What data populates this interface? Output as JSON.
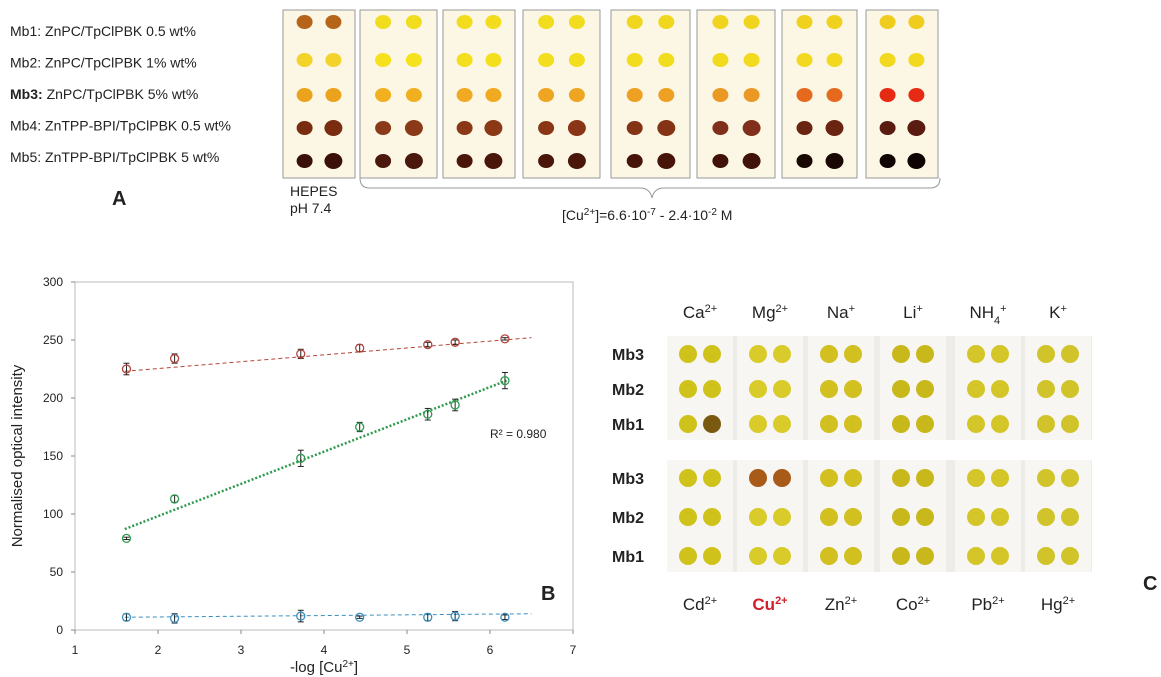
{
  "panel_a": {
    "label": "A",
    "legend": [
      {
        "id": "Mb1:",
        "text": "ZnPC/TpClPBK 0.5 wt%"
      },
      {
        "id": "Mb2:",
        "text": "ZnPC/TpClPBK  1% wt%"
      },
      {
        "id": "Mb3:",
        "text": "ZnPC/TpClPBK  5% wt%",
        "bold": true
      },
      {
        "id": "Mb4:",
        "text": "ZnTPP-BPI/TpClPBK 0.5 wt%"
      },
      {
        "id": "Mb5:",
        "text": "ZnTPP-BPI/TpClPBK 5 wt%"
      }
    ],
    "control": [
      "HEPES",
      "pH 7.4"
    ],
    "range": [
      "[Cu",
      "2+",
      "]=6.6·10",
      "-7",
      " - 2.4·10",
      "-2",
      " M"
    ]
  },
  "chart_data": {
    "type": "scatter",
    "label": "B",
    "xlabel": [
      "-log [Cu",
      "2+",
      "]"
    ],
    "ylabel": "Normalised optical intensity",
    "annotation": "R² = 0.980",
    "x": [
      1.62,
      2.2,
      3.72,
      4.43,
      5.25,
      5.58,
      6.18
    ],
    "series": [
      {
        "color": "#b5443a",
        "values": [
          225,
          234,
          238,
          243,
          246,
          248,
          251
        ],
        "errors": [
          5,
          4,
          4,
          3,
          2,
          2,
          1
        ],
        "trend": {
          "x": [
            1.6,
            6.5
          ],
          "values": [
            223,
            252
          ],
          "dash": "dashed"
        }
      },
      {
        "color": "#2e9a4e",
        "values": [
          79,
          113,
          148,
          175,
          186,
          194,
          215
        ],
        "errors": [
          1,
          3,
          7,
          4,
          5,
          5,
          7
        ],
        "trend": {
          "x": [
            1.6,
            6.2
          ],
          "values": [
            87,
            215
          ],
          "dash": "dotted"
        }
      },
      {
        "color": "#3a8fc0",
        "values": [
          11,
          10,
          12,
          11,
          11,
          12,
          11
        ],
        "errors": [
          3,
          4,
          5,
          1,
          3,
          4,
          2
        ],
        "trend": {
          "x": [
            1.6,
            6.5
          ],
          "values": [
            11,
            14
          ],
          "dash": "dashed"
        }
      }
    ],
    "xlim": [
      1,
      7
    ],
    "xticks": [
      1,
      2,
      3,
      4,
      5,
      6,
      7
    ],
    "ylim": [
      0,
      300
    ],
    "yticks": [
      0,
      50,
      100,
      150,
      200,
      250,
      300
    ],
    "grid": false
  },
  "panel_c": {
    "label": "C",
    "top_ions": [
      {
        "base": "Ca",
        "sup": "2+"
      },
      {
        "base": "Mg",
        "sup": "2+"
      },
      {
        "base": "Na",
        "sup": "+"
      },
      {
        "base": "Li",
        "sup": "+"
      },
      {
        "base": "NH",
        "sub": "4",
        "sup": "+"
      },
      {
        "base": "K",
        "sup": "+"
      }
    ],
    "bottom_ions": [
      {
        "base": "Cd",
        "sup": "2+"
      },
      {
        "base": "Cu",
        "sup": "2+",
        "color": "#d0202a"
      },
      {
        "base": "Zn",
        "sup": "2+"
      },
      {
        "base": "Co",
        "sup": "2+"
      },
      {
        "base": "Pb",
        "sup": "2+"
      },
      {
        "base": "Hg",
        "sup": "2+"
      }
    ],
    "top_rows": [
      "Mb3",
      "Mb2",
      "Mb1"
    ],
    "bottom_rows": [
      "Mb3",
      "Mb2",
      "Mb1"
    ]
  }
}
